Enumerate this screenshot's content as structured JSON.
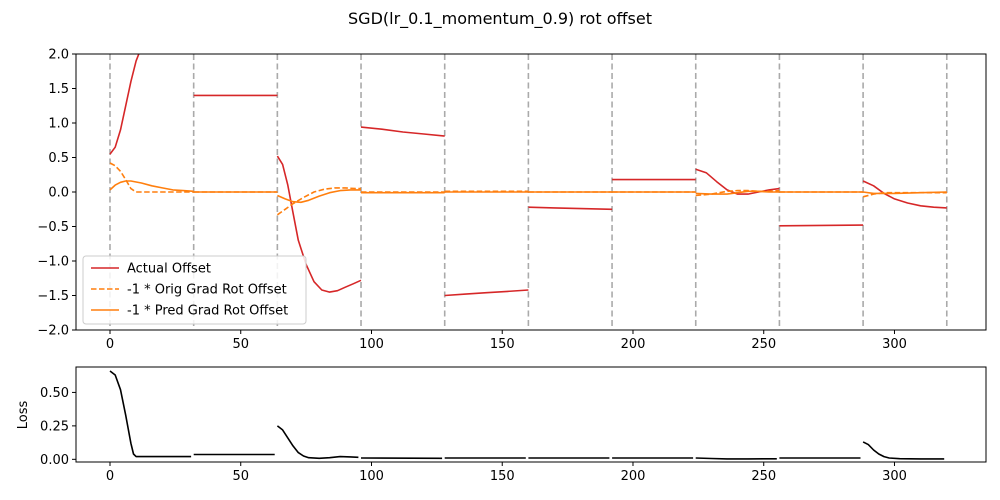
{
  "chart_data": [
    {
      "type": "line",
      "title": "SGD(lr_0.1_momentum_0.9) rot offset",
      "xlabel": "",
      "ylabel": "",
      "xlim": [
        -13,
        335
      ],
      "ylim": [
        -2.0,
        2.0
      ],
      "xticks": [
        0,
        50,
        100,
        150,
        200,
        250,
        300
      ],
      "yticks": [
        -2.0,
        -1.5,
        -1.0,
        -0.5,
        0.0,
        0.5,
        1.0,
        1.5,
        2.0
      ],
      "ytick_labels": [
        "−2.0",
        "−1.5",
        "−1.0",
        "−0.5",
        "0.0",
        "0.5",
        "1.0",
        "1.5",
        "2.0"
      ],
      "vlines": [
        0,
        32,
        64,
        96,
        128,
        160,
        192,
        224,
        256,
        288,
        320
      ],
      "vline_color": "#aaaaaa",
      "legend_position": "lower-left",
      "series": [
        {
          "name": "Actual Offset",
          "color": "#d62728",
          "style": "solid",
          "segments": [
            [
              [
                0,
                0.55
              ],
              [
                2,
                0.65
              ],
              [
                4,
                0.9
              ],
              [
                6,
                1.25
              ],
              [
                8,
                1.6
              ],
              [
                10,
                1.9
              ],
              [
                11,
                2.0
              ]
            ],
            [
              [
                32,
                1.4
              ],
              [
                64,
                1.4
              ]
            ],
            [
              [
                64,
                0.52
              ],
              [
                66,
                0.4
              ],
              [
                68,
                0.1
              ],
              [
                70,
                -0.3
              ],
              [
                72,
                -0.7
              ],
              [
                75,
                -1.05
              ],
              [
                78,
                -1.3
              ],
              [
                81,
                -1.42
              ],
              [
                84,
                -1.45
              ],
              [
                87,
                -1.43
              ],
              [
                90,
                -1.38
              ],
              [
                93,
                -1.33
              ],
              [
                96,
                -1.28
              ]
            ],
            [
              [
                96,
                0.94
              ],
              [
                104,
                0.91
              ],
              [
                112,
                0.87
              ],
              [
                120,
                0.84
              ],
              [
                128,
                0.81
              ]
            ],
            [
              [
                128,
                -1.5
              ],
              [
                136,
                -1.48
              ],
              [
                144,
                -1.46
              ],
              [
                152,
                -1.44
              ],
              [
                160,
                -1.42
              ]
            ],
            [
              [
                160,
                -0.22
              ],
              [
                170,
                -0.23
              ],
              [
                180,
                -0.24
              ],
              [
                192,
                -0.25
              ]
            ],
            [
              [
                192,
                0.18
              ],
              [
                224,
                0.18
              ]
            ],
            [
              [
                224,
                0.33
              ],
              [
                228,
                0.28
              ],
              [
                232,
                0.15
              ],
              [
                236,
                0.03
              ],
              [
                240,
                -0.03
              ],
              [
                244,
                -0.03
              ],
              [
                248,
                0.0
              ],
              [
                252,
                0.03
              ],
              [
                256,
                0.05
              ]
            ],
            [
              [
                256,
                -0.49
              ],
              [
                288,
                -0.48
              ]
            ],
            [
              [
                288,
                0.16
              ],
              [
                292,
                0.09
              ],
              [
                296,
                -0.02
              ],
              [
                300,
                -0.1
              ],
              [
                305,
                -0.16
              ],
              [
                310,
                -0.2
              ],
              [
                315,
                -0.22
              ],
              [
                320,
                -0.23
              ]
            ]
          ]
        },
        {
          "name": "-1 * Orig Grad Rot Offset",
          "color": "#ff7f0e",
          "style": "dashed",
          "segments": [
            [
              [
                0,
                0.42
              ],
              [
                2,
                0.38
              ],
              [
                4,
                0.3
              ],
              [
                6,
                0.18
              ],
              [
                8,
                0.05
              ],
              [
                10,
                0.0
              ],
              [
                16,
                0.0
              ],
              [
                24,
                0.0
              ],
              [
                32,
                0.0
              ]
            ],
            [
              [
                32,
                0.0
              ],
              [
                64,
                0.0
              ]
            ],
            [
              [
                64,
                -0.33
              ],
              [
                67,
                -0.25
              ],
              [
                70,
                -0.17
              ],
              [
                74,
                -0.08
              ],
              [
                78,
                0.0
              ],
              [
                82,
                0.04
              ],
              [
                86,
                0.06
              ],
              [
                90,
                0.06
              ],
              [
                94,
                0.05
              ],
              [
                96,
                0.05
              ]
            ],
            [
              [
                96,
                0.0
              ],
              [
                128,
                0.0
              ]
            ],
            [
              [
                128,
                0.01
              ],
              [
                160,
                0.01
              ]
            ],
            [
              [
                160,
                0.0
              ],
              [
                192,
                0.0
              ]
            ],
            [
              [
                192,
                0.0
              ],
              [
                224,
                0.0
              ]
            ],
            [
              [
                224,
                -0.05
              ],
              [
                230,
                -0.03
              ],
              [
                236,
                0.01
              ],
              [
                240,
                0.02
              ],
              [
                244,
                0.02
              ],
              [
                248,
                0.01
              ],
              [
                252,
                0.01
              ],
              [
                256,
                0.02
              ]
            ],
            [
              [
                256,
                0.0
              ],
              [
                288,
                0.0
              ]
            ],
            [
              [
                288,
                -0.07
              ],
              [
                292,
                -0.03
              ],
              [
                296,
                -0.01
              ],
              [
                300,
                -0.01
              ],
              [
                310,
                -0.01
              ],
              [
                320,
                -0.01
              ]
            ]
          ]
        },
        {
          "name": "-1 * Pred Grad Rot Offset",
          "color": "#ff7f0e",
          "style": "solid",
          "segments": [
            [
              [
                0,
                0.03
              ],
              [
                2,
                0.1
              ],
              [
                4,
                0.14
              ],
              [
                6,
                0.16
              ],
              [
                8,
                0.16
              ],
              [
                12,
                0.13
              ],
              [
                16,
                0.09
              ],
              [
                20,
                0.06
              ],
              [
                24,
                0.03
              ],
              [
                28,
                0.02
              ],
              [
                32,
                0.01
              ]
            ],
            [
              [
                32,
                0.0
              ],
              [
                64,
                0.0
              ]
            ],
            [
              [
                64,
                -0.05
              ],
              [
                67,
                -0.1
              ],
              [
                70,
                -0.14
              ],
              [
                73,
                -0.15
              ],
              [
                76,
                -0.12
              ],
              [
                80,
                -0.06
              ],
              [
                84,
                -0.01
              ],
              [
                88,
                0.02
              ],
              [
                92,
                0.03
              ],
              [
                96,
                0.03
              ]
            ],
            [
              [
                96,
                -0.01
              ],
              [
                128,
                -0.01
              ]
            ],
            [
              [
                128,
                0.0
              ],
              [
                160,
                0.0
              ]
            ],
            [
              [
                160,
                0.0
              ],
              [
                192,
                0.0
              ]
            ],
            [
              [
                192,
                0.0
              ],
              [
                224,
                0.0
              ]
            ],
            [
              [
                224,
                -0.02
              ],
              [
                230,
                -0.03
              ],
              [
                236,
                -0.03
              ],
              [
                240,
                -0.01
              ],
              [
                244,
                0.01
              ],
              [
                248,
                0.01
              ],
              [
                252,
                0.0
              ],
              [
                256,
                0.0
              ]
            ],
            [
              [
                256,
                0.0
              ],
              [
                288,
                0.0
              ]
            ],
            [
              [
                288,
                0.0
              ],
              [
                292,
                -0.02
              ],
              [
                296,
                -0.02
              ],
              [
                300,
                -0.02
              ],
              [
                310,
                -0.01
              ],
              [
                320,
                0.0
              ]
            ]
          ]
        }
      ]
    },
    {
      "type": "line",
      "title": "",
      "xlabel": "",
      "ylabel": "Loss",
      "xlim": [
        -13,
        335
      ],
      "ylim": [
        -0.02,
        0.69
      ],
      "xticks": [
        0,
        50,
        100,
        150,
        200,
        250,
        300
      ],
      "yticks": [
        0.0,
        0.25,
        0.5
      ],
      "ytick_labels": [
        "0.00",
        "0.25",
        "0.50"
      ],
      "series": [
        {
          "color": "#000000",
          "style": "solid",
          "segments": [
            [
              [
                0,
                0.66
              ],
              [
                2,
                0.63
              ],
              [
                4,
                0.52
              ],
              [
                6,
                0.33
              ],
              [
                8,
                0.12
              ],
              [
                9,
                0.04
              ],
              [
                10,
                0.02
              ],
              [
                16,
                0.02
              ],
              [
                24,
                0.02
              ],
              [
                31,
                0.02
              ]
            ],
            [
              [
                32,
                0.036
              ],
              [
                63,
                0.036
              ]
            ],
            [
              [
                64,
                0.25
              ],
              [
                66,
                0.22
              ],
              [
                68,
                0.16
              ],
              [
                70,
                0.1
              ],
              [
                72,
                0.05
              ],
              [
                74,
                0.025
              ],
              [
                76,
                0.012
              ],
              [
                80,
                0.008
              ],
              [
                84,
                0.012
              ],
              [
                88,
                0.02
              ],
              [
                92,
                0.018
              ],
              [
                95,
                0.015
              ]
            ],
            [
              [
                96,
                0.01
              ],
              [
                127,
                0.008
              ]
            ],
            [
              [
                128,
                0.01
              ],
              [
                159,
                0.01
              ]
            ],
            [
              [
                160,
                0.01
              ],
              [
                191,
                0.01
              ]
            ],
            [
              [
                192,
                0.01
              ],
              [
                223,
                0.01
              ]
            ],
            [
              [
                224,
                0.01
              ],
              [
                230,
                0.006
              ],
              [
                236,
                0.003
              ],
              [
                244,
                0.003
              ],
              [
                250,
                0.004
              ],
              [
                255,
                0.004
              ]
            ],
            [
              [
                256,
                0.01
              ],
              [
                287,
                0.01
              ]
            ],
            [
              [
                288,
                0.13
              ],
              [
                290,
                0.11
              ],
              [
                292,
                0.07
              ],
              [
                294,
                0.04
              ],
              [
                296,
                0.02
              ],
              [
                298,
                0.01
              ],
              [
                302,
                0.005
              ],
              [
                310,
                0.003
              ],
              [
                319,
                0.003
              ]
            ]
          ]
        }
      ]
    }
  ]
}
